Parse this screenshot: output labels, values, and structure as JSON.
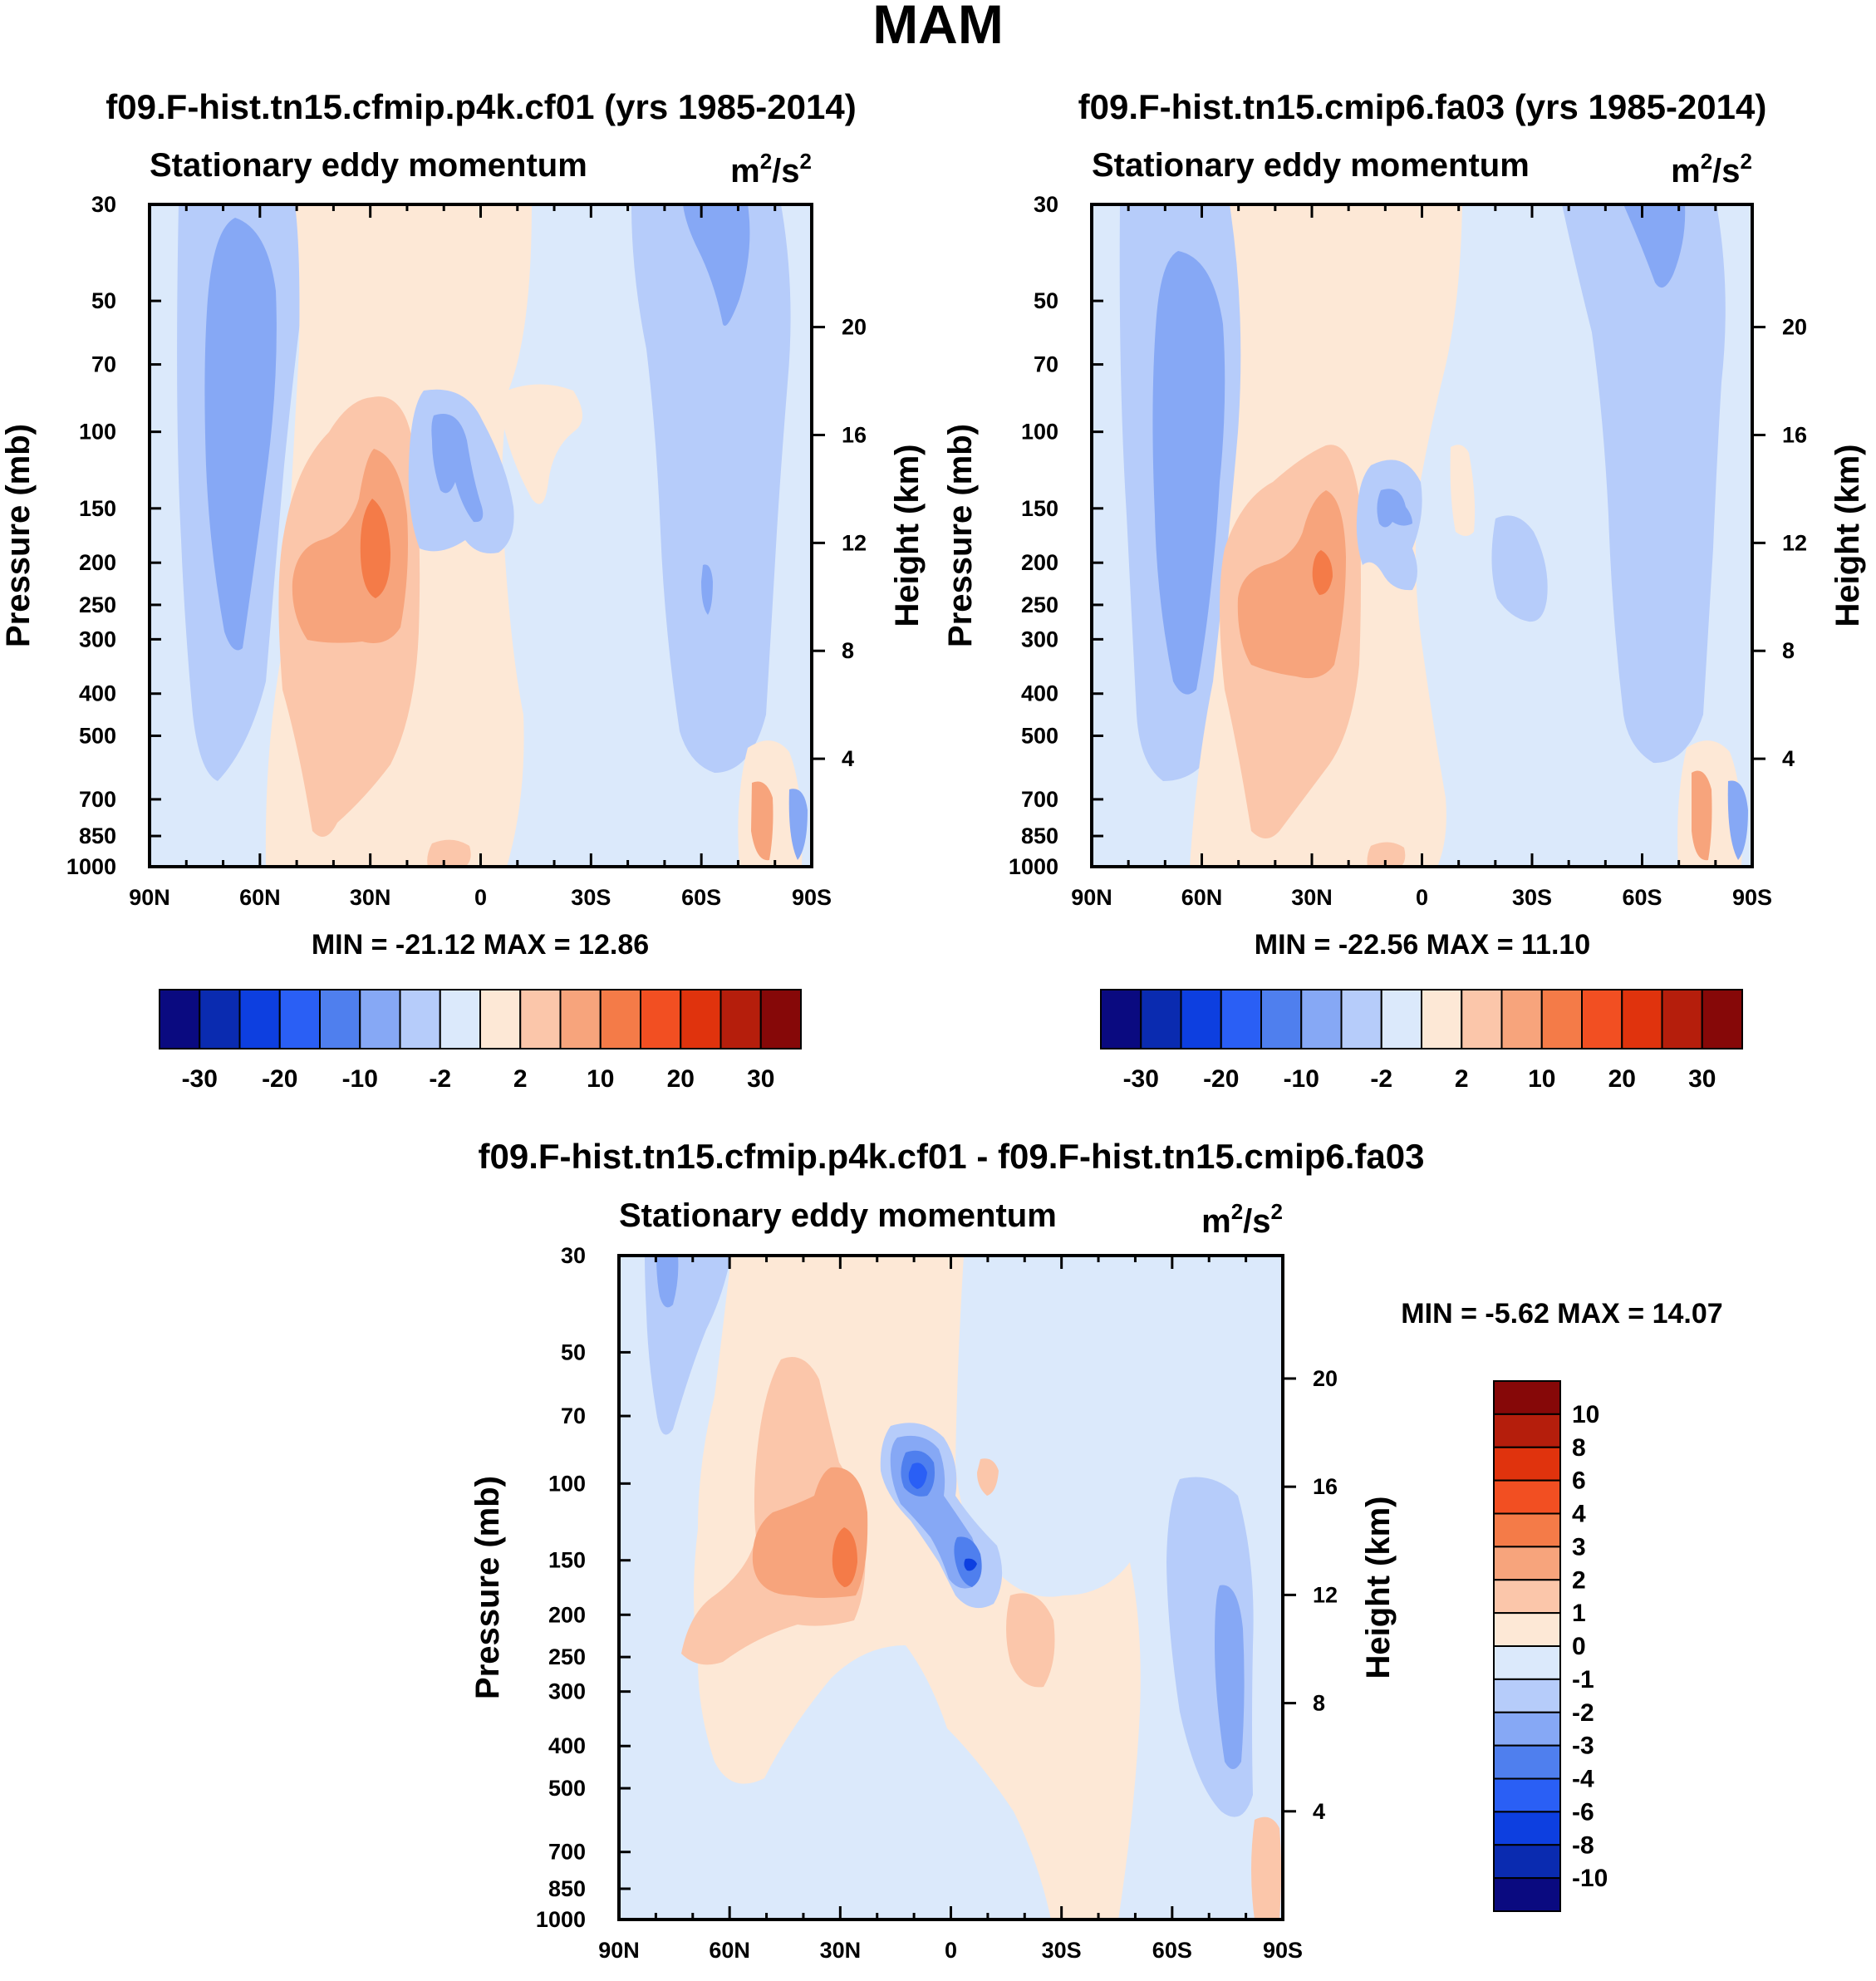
{
  "chart_data": {
    "type": "contour",
    "title": "MAM",
    "units": "m²/s²",
    "panels": [
      {
        "id": "p1",
        "title": "f09.F-hist.tn15.cfmip.p4k.cf01 (yrs 1985-2014)",
        "subtitle": "Stationary eddy momentum",
        "units_base": "m",
        "units_sup1": "2",
        "units_mid": "/s",
        "units_sup2": "2",
        "xlabel": "",
        "ylabel": "Pressure (mb)",
        "y2label": "Height (km)",
        "x_ticks": [
          "90N",
          "60N",
          "30N",
          "0",
          "30S",
          "60S",
          "90S"
        ],
        "y_ticks": [
          "30",
          "50",
          "70",
          "100",
          "150",
          "200",
          "250",
          "300",
          "400",
          "500",
          "700",
          "850",
          "1000"
        ],
        "y_tick_values": [
          30,
          50,
          70,
          100,
          150,
          200,
          250,
          300,
          400,
          500,
          700,
          850,
          1000
        ],
        "y2_ticks": [
          "20",
          "16",
          "12",
          "8",
          "4"
        ],
        "y2_tick_values": [
          20,
          16,
          12,
          8,
          4
        ],
        "xlim": [
          90,
          -90
        ],
        "ylim_mb": [
          1000,
          30
        ],
        "min_max": "MIN = -21.12  MAX =  12.86",
        "min": -21.12,
        "max": 12.86,
        "features": [
          {
            "lat": 65,
            "p": 120,
            "value": -10,
            "note": "NH high-latitude negative column"
          },
          {
            "lat": 28,
            "p": 200,
            "value": 10,
            "note": "subtropical jet positive maximum"
          },
          {
            "lat": 10,
            "p": 110,
            "value": -5,
            "note": "upper tropical negative"
          },
          {
            "lat": -63,
            "p": 40,
            "value": -5,
            "note": "SH stratospheric negative"
          }
        ]
      },
      {
        "id": "p2",
        "title": "f09.F-hist.tn15.cmip6.fa03 (yrs 1985-2014)",
        "subtitle": "Stationary eddy momentum",
        "units_base": "m",
        "units_sup1": "2",
        "units_mid": "/s",
        "units_sup2": "2",
        "xlabel": "",
        "ylabel": "Pressure (mb)",
        "y2label": "Height (km)",
        "x_ticks": [
          "90N",
          "60N",
          "30N",
          "0",
          "30S",
          "60S",
          "90S"
        ],
        "y_ticks": [
          "30",
          "50",
          "70",
          "100",
          "150",
          "200",
          "250",
          "300",
          "400",
          "500",
          "700",
          "850",
          "1000"
        ],
        "y_tick_values": [
          30,
          50,
          70,
          100,
          150,
          200,
          250,
          300,
          400,
          500,
          700,
          850,
          1000
        ],
        "y2_ticks": [
          "20",
          "16",
          "12",
          "8",
          "4"
        ],
        "y2_tick_values": [
          20,
          16,
          12,
          8,
          4
        ],
        "xlim": [
          90,
          -90
        ],
        "ylim_mb": [
          1000,
          30
        ],
        "min_max": "MIN = -22.56  MAX =  11.10",
        "min": -22.56,
        "max": 11.1,
        "features": [
          {
            "lat": 63,
            "p": 150,
            "value": -10,
            "note": "NH high-latitude negative column"
          },
          {
            "lat": 27,
            "p": 200,
            "value": 10,
            "note": "subtropical jet positive maximum"
          },
          {
            "lat": 10,
            "p": 150,
            "value": -5,
            "note": "upper tropical negative"
          },
          {
            "lat": -60,
            "p": 40,
            "value": -5,
            "note": "SH stratospheric negative"
          }
        ]
      },
      {
        "id": "p3",
        "title": "f09.F-hist.tn15.cfmip.p4k.cf01 - f09.F-hist.tn15.cmip6.fa03",
        "subtitle": "Stationary eddy momentum",
        "units_base": "m",
        "units_sup1": "2",
        "units_mid": "/s",
        "units_sup2": "2",
        "xlabel": "",
        "ylabel": "Pressure (mb)",
        "y2label": "Height (km)",
        "x_ticks": [
          "90N",
          "60N",
          "30N",
          "0",
          "30S",
          "60S",
          "90S"
        ],
        "y_ticks": [
          "30",
          "50",
          "70",
          "100",
          "150",
          "200",
          "250",
          "300",
          "400",
          "500",
          "700",
          "850",
          "1000"
        ],
        "y_tick_values": [
          30,
          50,
          70,
          100,
          150,
          200,
          250,
          300,
          400,
          500,
          700,
          850,
          1000
        ],
        "y2_ticks": [
          "20",
          "16",
          "12",
          "8",
          "4"
        ],
        "y2_tick_values": [
          20,
          16,
          12,
          8,
          4
        ],
        "xlim": [
          90,
          -90
        ],
        "ylim_mb": [
          1000,
          30
        ],
        "min_max": "MIN =  -5.62  MAX =  14.07",
        "min": -5.62,
        "max": 14.07,
        "features": [
          {
            "lat": 30,
            "p": 150,
            "value": 4,
            "note": "subtropical positive maximum"
          },
          {
            "lat": 8,
            "p": 100,
            "value": -6,
            "note": "tropical negative core"
          },
          {
            "lat": -5,
            "p": 150,
            "value": -6,
            "note": "equatorial negative core"
          },
          {
            "lat": -70,
            "p": 300,
            "value": -2,
            "note": "SH negative column"
          }
        ]
      }
    ],
    "colorbar_main": {
      "orientation": "horizontal",
      "labels": [
        "-30",
        "-20",
        "-10",
        "-2",
        "2",
        "10",
        "20",
        "30"
      ],
      "colors": [
        "#0a0a80",
        "#0a2bb0",
        "#0d3fe0",
        "#2a5ff5",
        "#4f7fee",
        "#86a8f5",
        "#b6ccfa",
        "#dbe9fb",
        "#fde8d6",
        "#fbc6aa",
        "#f7a47c",
        "#f47b48",
        "#f24f22",
        "#e0330d",
        "#b51e0c",
        "#860808"
      ]
    },
    "colorbar_diff": {
      "orientation": "vertical",
      "labels": [
        "10",
        "8",
        "6",
        "4",
        "3",
        "2",
        "1",
        "0",
        "-1",
        "-2",
        "-3",
        "-4",
        "-6",
        "-8",
        "-10"
      ],
      "colors": [
        "#860808",
        "#b51e0c",
        "#e0330d",
        "#f24f22",
        "#f47b48",
        "#f7a47c",
        "#fbc6aa",
        "#fde8d6",
        "#dbe9fb",
        "#b6ccfa",
        "#86a8f5",
        "#4f7fee",
        "#2a5ff5",
        "#0d3fe0",
        "#0a2bb0",
        "#0a0a80"
      ]
    }
  }
}
